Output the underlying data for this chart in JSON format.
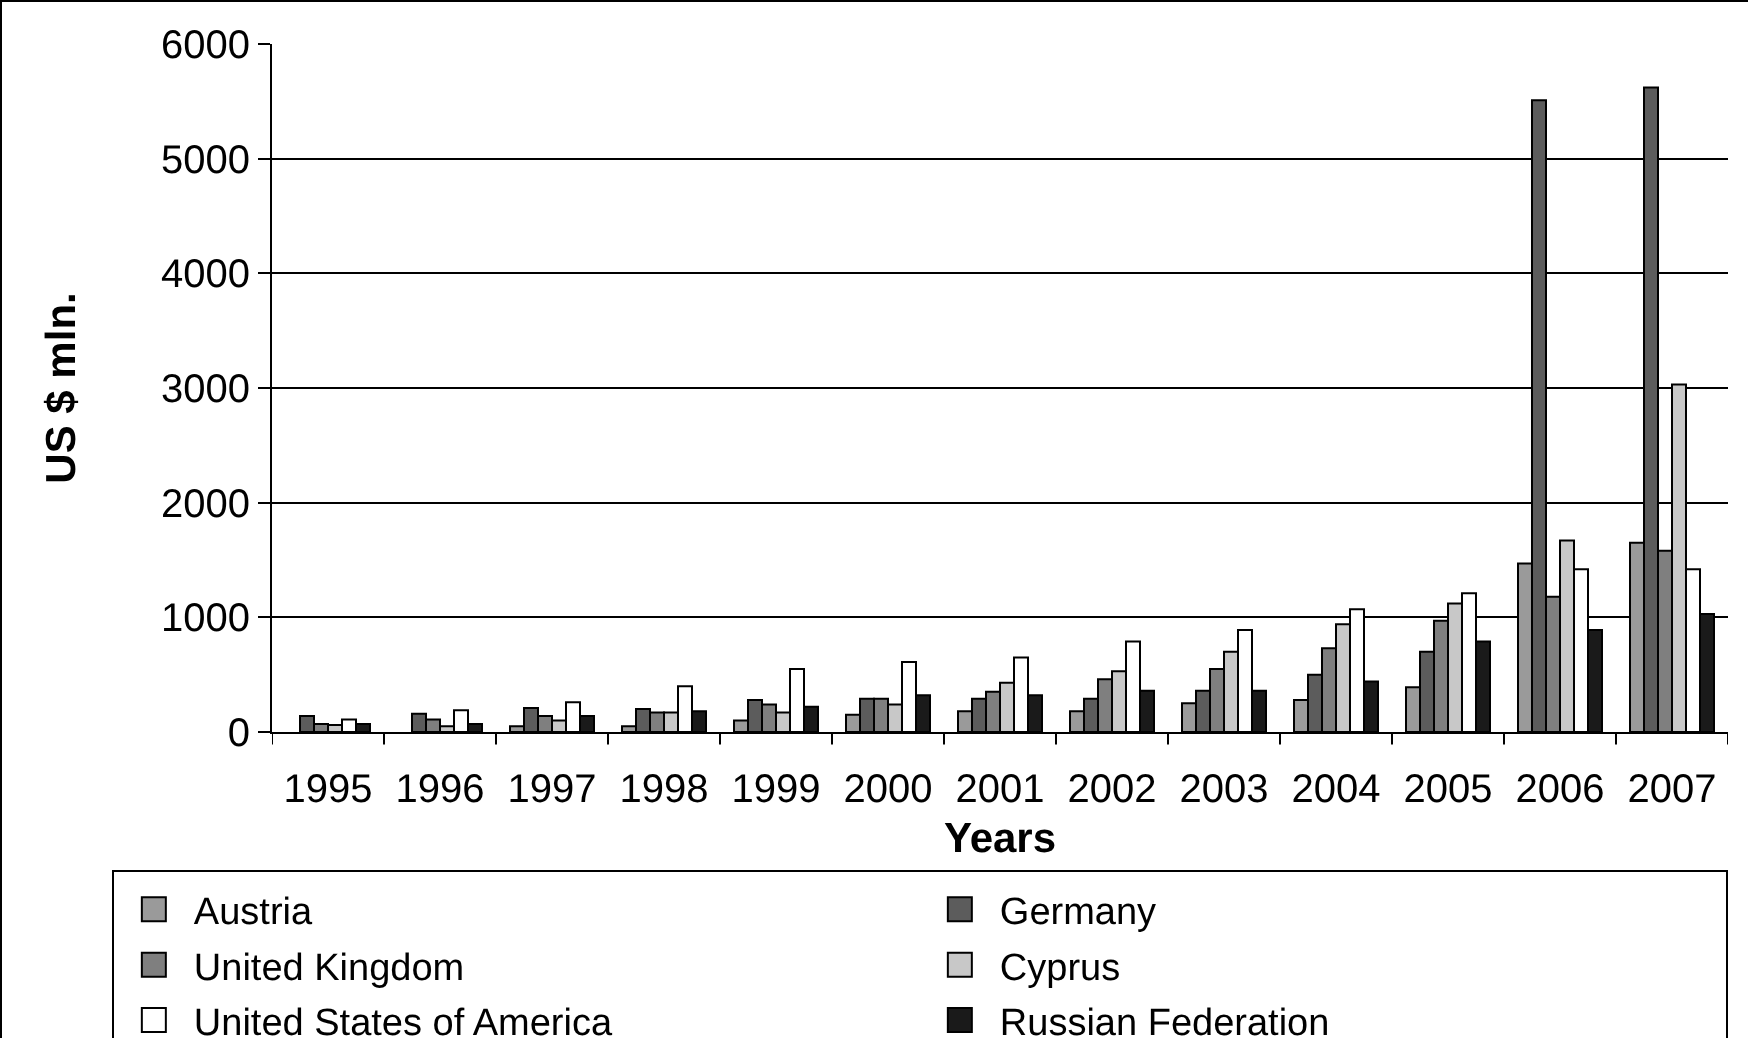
{
  "chart_data": {
    "type": "bar",
    "xlabel": "Years",
    "ylabel": "US $ mln.",
    "categories": [
      "1995",
      "1996",
      "1997",
      "1998",
      "1999",
      "2000",
      "2001",
      "2002",
      "2003",
      "2004",
      "2005",
      "2006",
      "2007"
    ],
    "series": [
      {
        "name": "Austria",
        "color": "#9a9a9a",
        "values": [
          null,
          null,
          50,
          50,
          100,
          150,
          180,
          180,
          250,
          280,
          390,
          1470,
          1650
        ]
      },
      {
        "name": "Germany",
        "color": "#5c5c5c",
        "values": [
          140,
          160,
          210,
          200,
          280,
          290,
          290,
          290,
          360,
          500,
          700,
          5510,
          5620
        ]
      },
      {
        "name": "United Kingdom",
        "color": "#7f7f7f",
        "values": [
          70,
          110,
          140,
          170,
          240,
          290,
          350,
          460,
          550,
          730,
          970,
          1180,
          1580
        ]
      },
      {
        "name": "Cyprus",
        "color": "#c8c8c8",
        "values": [
          60,
          50,
          100,
          170,
          170,
          240,
          430,
          530,
          700,
          940,
          1120,
          1670,
          3030
        ]
      },
      {
        "name": "United States of America",
        "color": "#ffffff",
        "values": [
          110,
          190,
          260,
          400,
          550,
          610,
          650,
          790,
          890,
          1070,
          1210,
          1420,
          1420
        ]
      },
      {
        "name": "Russian Federation",
        "color": "#1a1a1a",
        "values": [
          70,
          70,
          140,
          180,
          220,
          320,
          320,
          360,
          360,
          440,
          790,
          890,
          1030
        ]
      }
    ],
    "ylim": [
      0,
      6000
    ],
    "yticks": [
      0,
      1000,
      2000,
      3000,
      4000,
      5000,
      6000
    ],
    "grid": "y",
    "legend": "bottom"
  }
}
